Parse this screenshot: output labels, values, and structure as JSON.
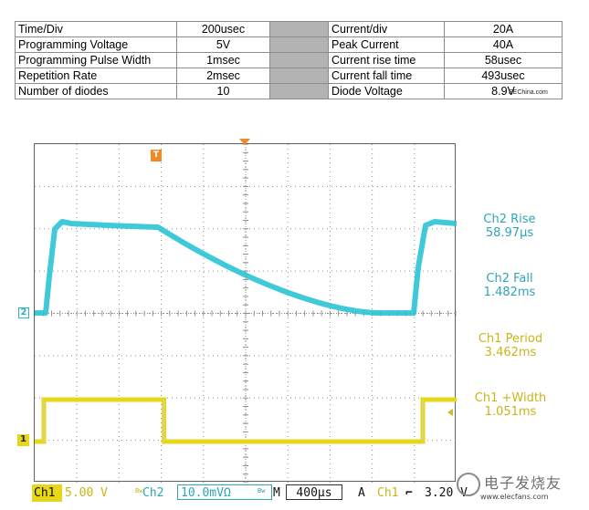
{
  "params_table": {
    "rows": [
      {
        "label": "Time/Div",
        "value": "200usec",
        "label2": "Current/div",
        "value2": "20A"
      },
      {
        "label": "Programming Voltage",
        "value": "5V",
        "label2": "Peak Current",
        "value2": "40A"
      },
      {
        "label": "Programming Pulse Width",
        "value": "1msec",
        "label2": "Current rise time",
        "value2": "58usec"
      },
      {
        "label": "Repetition Rate",
        "value": "2msec",
        "label2": "Current fall time",
        "value2": "493usec"
      },
      {
        "label": "Number of diodes",
        "value": "10",
        "label2": "Diode Voltage",
        "value2": "8.9V"
      }
    ],
    "source_tag": "EEChina.com"
  },
  "scope": {
    "markers": {
      "ch2": "2",
      "ch1": "1",
      "trigger": "T"
    },
    "measurements": [
      {
        "label": "Ch2 Rise",
        "value": "58.97µs",
        "color": "#2ea6b4"
      },
      {
        "label": "Ch2 Fall",
        "value": "1.482ms",
        "color": "#2ea6b4"
      },
      {
        "label": "Ch1 Period",
        "value": "3.462ms",
        "color": "#c9b517"
      },
      {
        "label": "Ch1 +Width",
        "value": "1.051ms",
        "color": "#c9b517"
      }
    ],
    "status": {
      "ch1_label": "Ch1",
      "ch1_scale": "5.00 V",
      "bw_mark": "Bw",
      "ch2_label": "Ch2",
      "ch2_scale": "10.0mVΩ",
      "mode": "M",
      "timebase": "400µs",
      "acq": "A",
      "trig_channel": "Ch1",
      "trig_slope": "⌐",
      "trig_level": "3.20 V"
    },
    "colors": {
      "ch1": "#e6d719",
      "ch2": "#2bc3d4",
      "trigger": "#f08a24",
      "grid": "#8f8f8f"
    },
    "ch1_pulse": {
      "high_start_div": 0.0,
      "high_end_div": 3.0,
      "next_high_div": 9.2
    }
  },
  "watermark": {
    "cn_text": "电子发烧友",
    "url": "www.elecfans.com"
  }
}
